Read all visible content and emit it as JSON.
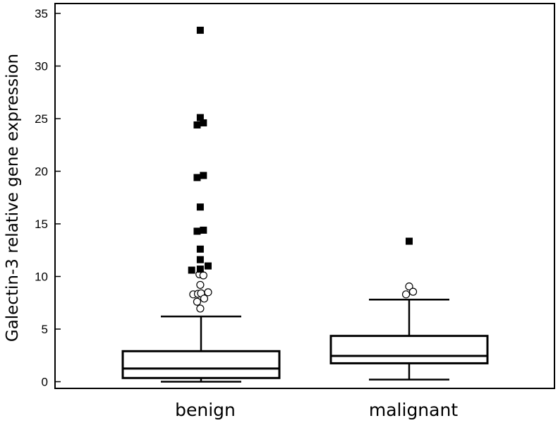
{
  "chart_data": {
    "type": "box",
    "title": "",
    "ylabel": "Galectin-3 relative gene expression",
    "xlabel": "",
    "ylim": [
      -0.7,
      35.5
    ],
    "yticks": [
      0,
      5,
      10,
      15,
      20,
      25,
      30,
      35
    ],
    "grid": false,
    "groups": [
      {
        "category": "benign",
        "whisker_low": 0.0,
        "q1": 0.35,
        "median": 1.25,
        "q3": 2.9,
        "whisker_high": 6.2,
        "outliers_open": [
          {
            "x": -0.02,
            "y": 10.2
          },
          {
            "x": 0.03,
            "y": 10.1
          },
          {
            "x": -0.01,
            "y": 9.2
          },
          {
            "x": -0.1,
            "y": 8.3
          },
          {
            "x": -0.04,
            "y": 8.35
          },
          {
            "x": 0.0,
            "y": 8.4
          },
          {
            "x": 0.09,
            "y": 8.5
          },
          {
            "x": 0.04,
            "y": 7.9
          },
          {
            "x": -0.05,
            "y": 7.6
          },
          {
            "x": -0.01,
            "y": 6.95
          }
        ],
        "outliers_far": [
          {
            "x": -0.01,
            "y": 33.4
          },
          {
            "x": -0.01,
            "y": 25.1
          },
          {
            "x": -0.05,
            "y": 24.4
          },
          {
            "x": 0.03,
            "y": 24.6
          },
          {
            "x": -0.05,
            "y": 19.4
          },
          {
            "x": 0.03,
            "y": 19.6
          },
          {
            "x": -0.01,
            "y": 16.6
          },
          {
            "x": -0.05,
            "y": 14.3
          },
          {
            "x": 0.03,
            "y": 14.4
          },
          {
            "x": -0.01,
            "y": 12.6
          },
          {
            "x": -0.01,
            "y": 11.6
          },
          {
            "x": -0.12,
            "y": 10.6
          },
          {
            "x": -0.01,
            "y": 10.7
          },
          {
            "x": 0.09,
            "y": 11.0
          }
        ]
      },
      {
        "category": "malignant",
        "whisker_low": 0.2,
        "q1": 1.75,
        "median": 2.45,
        "q3": 4.35,
        "whisker_high": 7.8,
        "outliers_open": [
          {
            "x": 0.0,
            "y": 9.05
          },
          {
            "x": -0.04,
            "y": 8.3
          },
          {
            "x": 0.05,
            "y": 8.55
          }
        ],
        "outliers_far": [
          {
            "x": 0.0,
            "y": 13.35
          }
        ]
      }
    ]
  }
}
